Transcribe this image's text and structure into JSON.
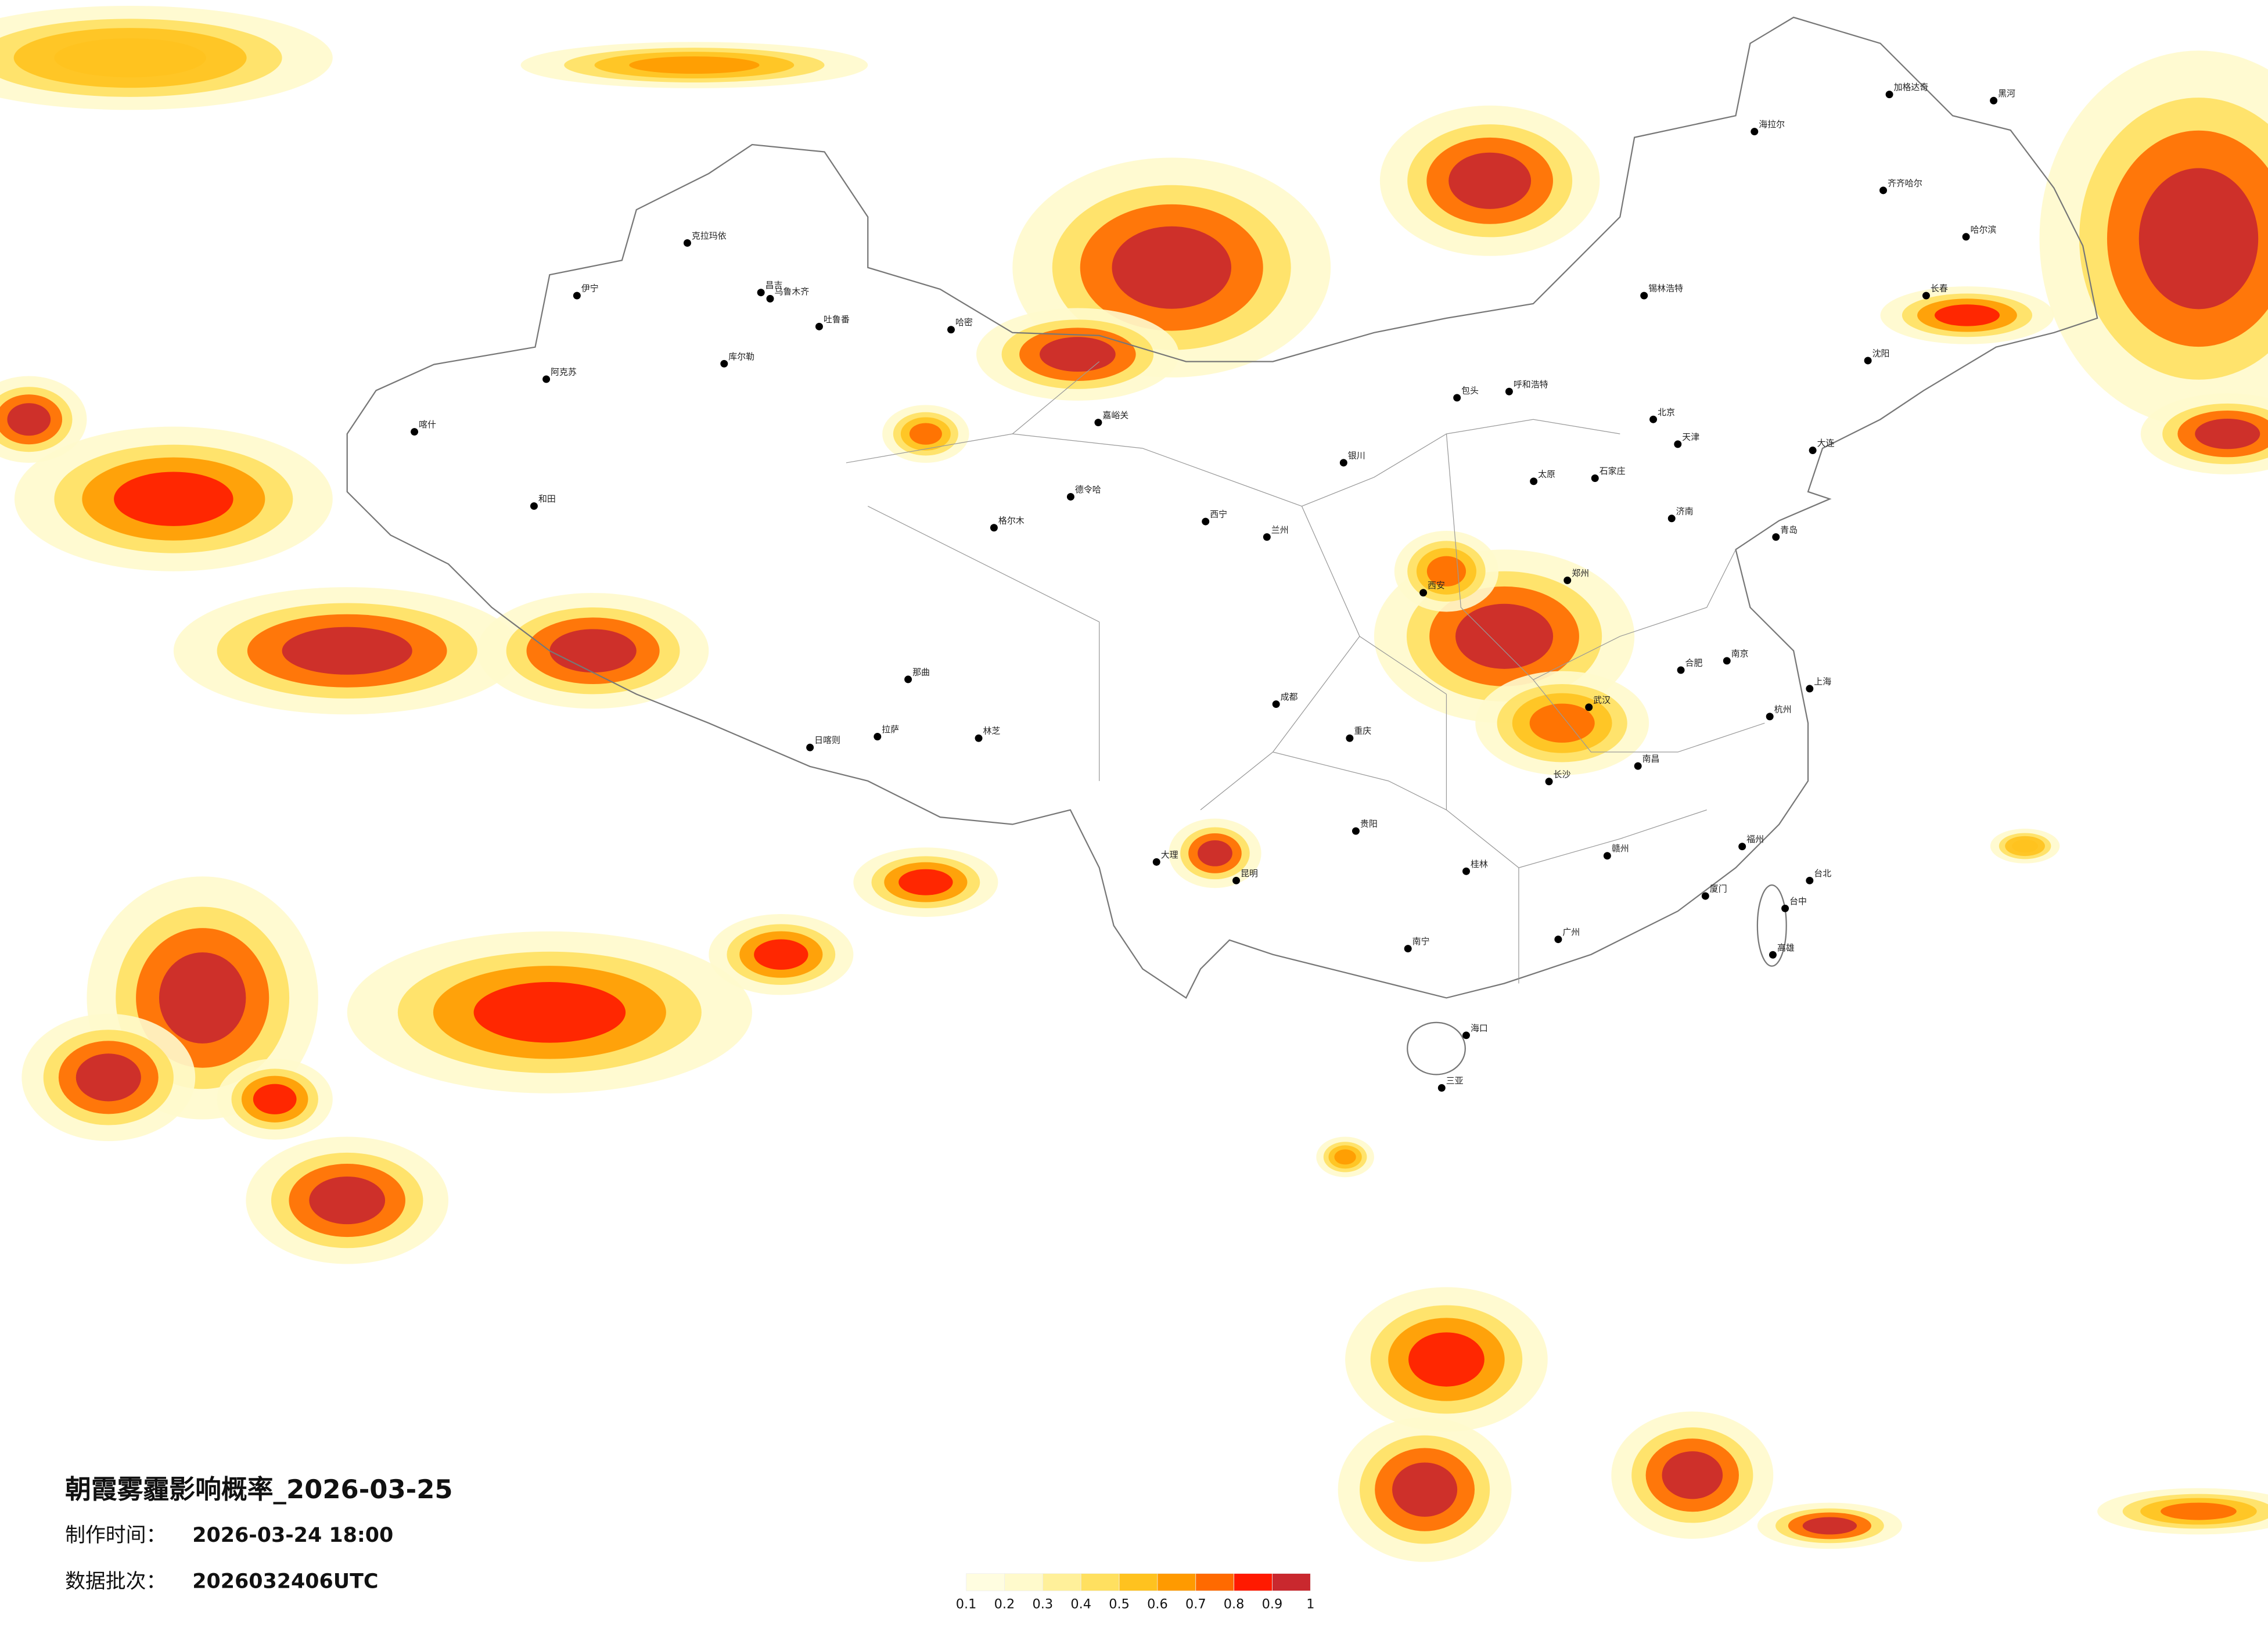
{
  "title": "朝霞雾霾影响概率_2026-03-25",
  "made_label": "制作时间：",
  "made_time": "2026-03-24 18:00",
  "batch_label": "数据批次：",
  "batch": "2026032406UTC",
  "legend": {
    "ticks": [
      0.1,
      0.2,
      0.3,
      0.4,
      0.5,
      0.6,
      0.7,
      0.8,
      0.9,
      1
    ],
    "colors": [
      "#fffde0",
      "#fffacc",
      "#fff09a",
      "#ffe060",
      "#ffc21f",
      "#ff9a00",
      "#ff6a00",
      "#ff1a00",
      "#c9282e"
    ]
  },
  "cities": [
    {
      "name": "克拉玛依",
      "lon": 84.9,
      "lat": 45.6
    },
    {
      "name": "伊宁",
      "lon": 81.3,
      "lat": 43.9
    },
    {
      "name": "昌吉",
      "lon": 87.3,
      "lat": 44.0
    },
    {
      "name": "乌鲁木齐",
      "lon": 87.6,
      "lat": 43.8
    },
    {
      "name": "吐鲁番",
      "lon": 89.2,
      "lat": 42.9
    },
    {
      "name": "哈密",
      "lon": 93.5,
      "lat": 42.8
    },
    {
      "name": "库尔勒",
      "lon": 86.1,
      "lat": 41.7
    },
    {
      "name": "阿克苏",
      "lon": 80.3,
      "lat": 41.2
    },
    {
      "name": "喀什",
      "lon": 76.0,
      "lat": 39.5
    },
    {
      "name": "和田",
      "lon": 79.9,
      "lat": 37.1
    },
    {
      "name": "德令哈",
      "lon": 97.4,
      "lat": 37.4
    },
    {
      "name": "格尔木",
      "lon": 94.9,
      "lat": 36.4
    },
    {
      "name": "那曲",
      "lon": 92.1,
      "lat": 31.5
    },
    {
      "name": "拉萨",
      "lon": 91.1,
      "lat": 29.65
    },
    {
      "name": "日喀则",
      "lon": 88.9,
      "lat": 29.3
    },
    {
      "name": "林芝",
      "lon": 94.4,
      "lat": 29.6
    },
    {
      "name": "嘉峪关",
      "lon": 98.3,
      "lat": 39.8
    },
    {
      "name": "西宁",
      "lon": 101.8,
      "lat": 36.6
    },
    {
      "name": "兰州",
      "lon": 103.8,
      "lat": 36.1
    },
    {
      "name": "银川",
      "lon": 106.3,
      "lat": 38.5
    },
    {
      "name": "包头",
      "lon": 110.0,
      "lat": 40.6
    },
    {
      "name": "呼和浩特",
      "lon": 111.7,
      "lat": 40.8
    },
    {
      "name": "北京",
      "lon": 116.4,
      "lat": 39.9
    },
    {
      "name": "天津",
      "lon": 117.2,
      "lat": 39.1
    },
    {
      "name": "石家庄",
      "lon": 114.5,
      "lat": 38.0
    },
    {
      "name": "太原",
      "lon": 112.5,
      "lat": 37.9
    },
    {
      "name": "济南",
      "lon": 117.0,
      "lat": 36.7
    },
    {
      "name": "青岛",
      "lon": 120.4,
      "lat": 36.1
    },
    {
      "name": "郑州",
      "lon": 113.6,
      "lat": 34.7
    },
    {
      "name": "西安",
      "lon": 108.9,
      "lat": 34.3
    },
    {
      "name": "武汉",
      "lon": 114.3,
      "lat": 30.6
    },
    {
      "name": "合肥",
      "lon": 117.3,
      "lat": 31.8
    },
    {
      "name": "南京",
      "lon": 118.8,
      "lat": 32.1
    },
    {
      "name": "上海",
      "lon": 121.5,
      "lat": 31.2
    },
    {
      "name": "杭州",
      "lon": 120.2,
      "lat": 30.3
    },
    {
      "name": "福州",
      "lon": 119.3,
      "lat": 26.1
    },
    {
      "name": "厦门",
      "lon": 118.1,
      "lat": 24.5
    },
    {
      "name": "广州",
      "lon": 113.3,
      "lat": 23.1
    },
    {
      "name": "南宁",
      "lon": 108.4,
      "lat": 22.8
    },
    {
      "name": "海口",
      "lon": 110.3,
      "lat": 20.0
    },
    {
      "name": "三亚",
      "lon": 109.5,
      "lat": 18.3
    },
    {
      "name": "昆明",
      "lon": 102.8,
      "lat": 25.0
    },
    {
      "name": "贵阳",
      "lon": 106.7,
      "lat": 26.6
    },
    {
      "name": "成都",
      "lon": 104.1,
      "lat": 30.7
    },
    {
      "name": "重庆",
      "lon": 106.5,
      "lat": 29.6
    },
    {
      "name": "长沙",
      "lon": 113.0,
      "lat": 28.2
    },
    {
      "name": "南昌",
      "lon": 115.9,
      "lat": 28.7
    },
    {
      "name": "哈尔滨",
      "lon": 126.6,
      "lat": 45.8
    },
    {
      "name": "长春",
      "lon": 125.3,
      "lat": 43.9
    },
    {
      "name": "沈阳",
      "lon": 123.4,
      "lat": 41.8
    },
    {
      "name": "大连",
      "lon": 121.6,
      "lat": 38.9
    },
    {
      "name": "海拉尔",
      "lon": 119.7,
      "lat": 49.2
    },
    {
      "name": "齐齐哈尔",
      "lon": 123.9,
      "lat": 47.3
    },
    {
      "name": "加格达奇",
      "lon": 124.1,
      "lat": 50.4
    },
    {
      "name": "黑河",
      "lon": 127.5,
      "lat": 50.2
    },
    {
      "name": "锡林浩特",
      "lon": 116.1,
      "lat": 43.9
    },
    {
      "name": "台北",
      "lon": 121.5,
      "lat": 25.0
    },
    {
      "name": "台中",
      "lon": 120.7,
      "lat": 24.1
    },
    {
      "name": "高雄",
      "lon": 120.3,
      "lat": 22.6
    },
    {
      "name": "大理",
      "lon": 100.2,
      "lat": 25.6
    },
    {
      "name": "桂林",
      "lon": 110.3,
      "lat": 25.3
    },
    {
      "name": "赣州",
      "lon": 114.9,
      "lat": 25.8
    }
  ]
}
